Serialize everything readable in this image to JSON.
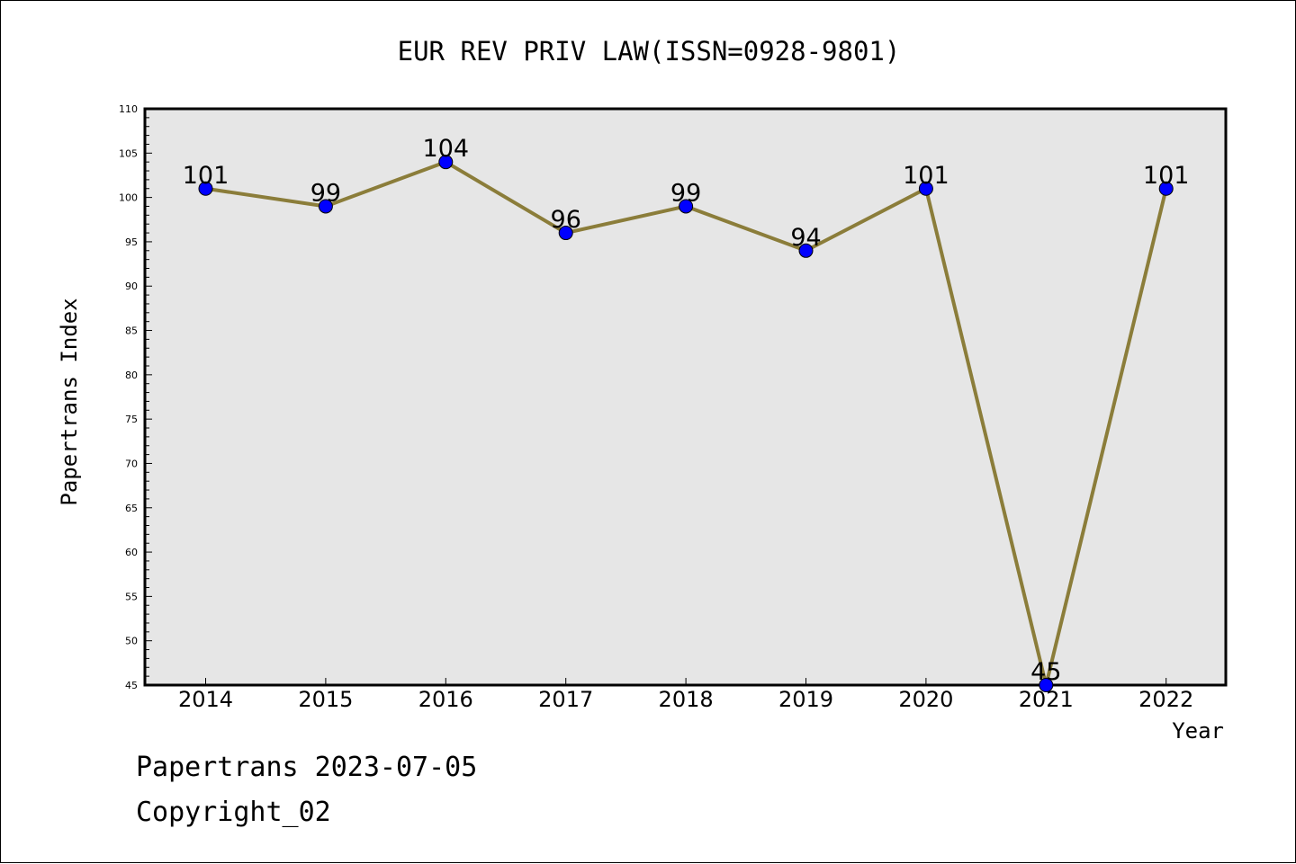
{
  "chart_data": {
    "type": "line",
    "title": "EUR REV PRIV LAW(ISSN=0928-9801)",
    "xlabel": "Year",
    "ylabel": "Papertrans Index",
    "categories": [
      "2014",
      "2015",
      "2016",
      "2017",
      "2018",
      "2019",
      "2020",
      "2021",
      "2022"
    ],
    "series": [
      {
        "values": [
          101,
          99,
          104,
          96,
          99,
          94,
          101,
          45,
          101
        ]
      }
    ],
    "ylim": [
      45,
      110
    ],
    "yticks": [
      45,
      50,
      55,
      60,
      65,
      70,
      75,
      80,
      85,
      90,
      95,
      100,
      105,
      110
    ],
    "grid": false,
    "legend": "none",
    "colors": {
      "line": "#8B7D3A",
      "marker": "#0000FF",
      "plot_bg": "#E6E6E6"
    }
  },
  "footer": {
    "date_line": "Papertrans 2023-07-05",
    "copyright_line": "Copyright_02"
  }
}
